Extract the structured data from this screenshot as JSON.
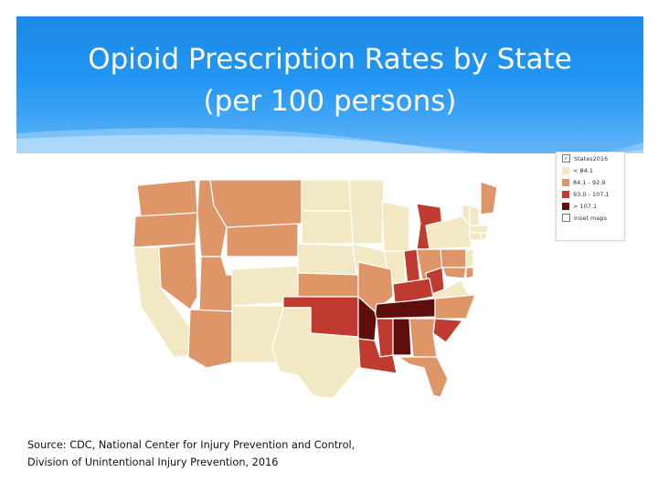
{
  "slide": {
    "title_line1": "Opioid Prescription Rates by State",
    "title_line2": "(per 100 persons)"
  },
  "legend": {
    "header": "States2016",
    "bins": [
      {
        "label": "< 84.1",
        "color": "#f3e8c4"
      },
      {
        "label": "84.1 - 92.9",
        "color": "#de9669"
      },
      {
        "label": "93.0 - 107.1",
        "color": "#bf3a2f"
      },
      {
        "label": "> 107.1",
        "color": "#5e0e0d"
      }
    ],
    "inset": "Inset maps"
  },
  "map_data": {
    "WA": 1,
    "OR": 1,
    "ID": 1,
    "MT": 1,
    "ND": 0,
    "MN": 0,
    "WI": 0,
    "MI": 2,
    "ME": 1,
    "VT": 0,
    "NH": 0,
    "NY": 0,
    "MA": 0,
    "CT": 0,
    "RI": 0,
    "NJ": 0,
    "PA": 1,
    "CA": 0,
    "NV": 1,
    "UT": 1,
    "WY": 1,
    "SD": 0,
    "IA": 0,
    "IL": 0,
    "IN": 2,
    "OH": 1,
    "WV": 2,
    "VA": 0,
    "MD": 1,
    "DE": 1,
    "AZ": 1,
    "CO": 0,
    "NE": 0,
    "KS": 1,
    "MO": 1,
    "KY": 2,
    "TN": 3,
    "NC": 1,
    "SC": 2,
    "NM": 0,
    "OK": 2,
    "AR": 3,
    "MS": 2,
    "AL": 3,
    "GA": 1,
    "TX": 0,
    "LA": 2,
    "FL": 1
  },
  "colors": {
    "header_blue": "#2196f3",
    "title_white": "#ffffff"
  },
  "source": {
    "line1": "Source: CDC, National Center for Injury Prevention and Control,",
    "line2": "Division of Unintentional Injury Prevention, 2016"
  }
}
